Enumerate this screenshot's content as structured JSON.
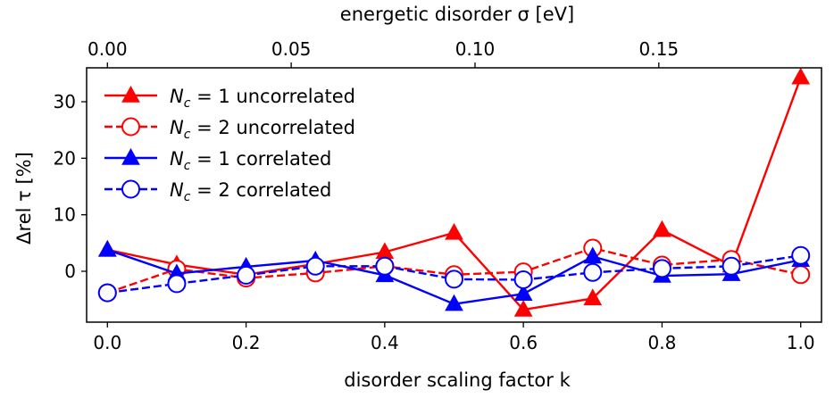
{
  "chart_data": {
    "type": "line",
    "xlabel_bottom": "disorder scaling factor k",
    "xlabel_top": "energetic disorder σ [eV]",
    "ylabel": "Δrel τ [%]",
    "x": [
      0.0,
      0.1,
      0.2,
      0.3,
      0.4,
      0.5,
      0.6,
      0.7,
      0.8,
      0.9,
      1.0
    ],
    "xlim": [
      -0.03,
      1.03
    ],
    "ylim": [
      -9,
      36
    ],
    "x_ticks": [
      0.0,
      0.2,
      0.4,
      0.6,
      0.8,
      1.0
    ],
    "x_tick_labels": [
      "0.0",
      "0.2",
      "0.4",
      "0.6",
      "0.8",
      "1.0"
    ],
    "top_ticks": [
      0.0,
      0.05,
      0.1,
      0.15
    ],
    "top_tick_labels": [
      "0.00",
      "0.05",
      "0.10",
      "0.15"
    ],
    "top_axis_per_k": 0.1886,
    "y_ticks": [
      0,
      10,
      20,
      30
    ],
    "y_tick_labels": [
      "0",
      "10",
      "20",
      "30"
    ],
    "grid": false,
    "legend_placement": "upper-left",
    "series": [
      {
        "name": "N_c = 1 uncorrelated",
        "label_math": "N",
        "label_sub": "c",
        "label_rest": " = 1 uncorrelated",
        "color": "#ff0000",
        "linestyle": "solid",
        "marker": "triangle-filled",
        "values": [
          3.8,
          1.2,
          -0.6,
          1.3,
          3.4,
          6.8,
          -6.8,
          -4.8,
          7.3,
          1.0,
          34.3
        ]
      },
      {
        "name": "N_c = 2 uncorrelated",
        "label_math": "N",
        "label_sub": "c",
        "label_rest": " = 2 uncorrelated",
        "color": "#ff0000",
        "linestyle": "dashed",
        "marker": "circle-open",
        "values": [
          -3.8,
          0.4,
          -1.2,
          -0.3,
          0.9,
          -0.6,
          -0.1,
          4.1,
          1.1,
          2.1,
          -0.6
        ]
      },
      {
        "name": "N_c = 1 correlated",
        "label_math": "N",
        "label_sub": "c",
        "label_rest": " = 1 correlated",
        "color": "#0000ff",
        "linestyle": "solid",
        "marker": "triangle-filled",
        "values": [
          3.8,
          -0.4,
          0.8,
          1.9,
          -0.7,
          -5.8,
          -4.0,
          2.6,
          -0.8,
          -0.5,
          2.0
        ]
      },
      {
        "name": "N_c = 2 correlated",
        "label_math": "N",
        "label_sub": "c",
        "label_rest": " = 2 correlated",
        "color": "#0000ff",
        "linestyle": "dashed",
        "marker": "circle-open",
        "values": [
          -3.8,
          -2.2,
          -0.7,
          0.9,
          0.9,
          -1.4,
          -1.5,
          -0.2,
          0.5,
          0.9,
          2.8
        ]
      }
    ]
  }
}
